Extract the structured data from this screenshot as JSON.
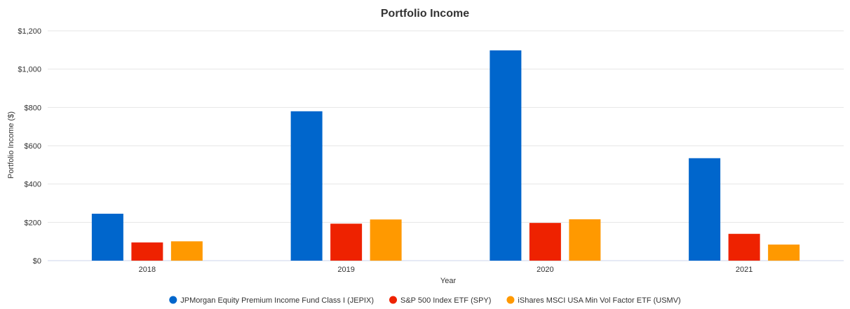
{
  "chart_data": {
    "type": "bar",
    "title": "Portfolio Income",
    "xlabel": "Year",
    "ylabel": "Portfolio Income ($)",
    "categories": [
      "2018",
      "2019",
      "2020",
      "2021"
    ],
    "y_ticks": [
      "$0",
      "$200",
      "$400",
      "$600",
      "$800",
      "$1,000",
      "$1,200"
    ],
    "y_tick_values": [
      0,
      200,
      400,
      600,
      800,
      1000,
      1200
    ],
    "ylim": [
      0,
      1200
    ],
    "grid": true,
    "legend_position": "bottom",
    "series": [
      {
        "name": "JPMorgan Equity Premium Income Fund Class I (JEPIX)",
        "color": "#0066cc",
        "values": [
          245,
          780,
          1098,
          535
        ]
      },
      {
        "name": "S&P 500 Index ETF (SPY)",
        "color": "#ee2200",
        "values": [
          95,
          193,
          197,
          140
        ]
      },
      {
        "name": "iShares MSCI USA Min Vol Factor ETF (USMV)",
        "color": "#ff9900",
        "values": [
          101,
          215,
          216,
          84
        ]
      }
    ]
  }
}
